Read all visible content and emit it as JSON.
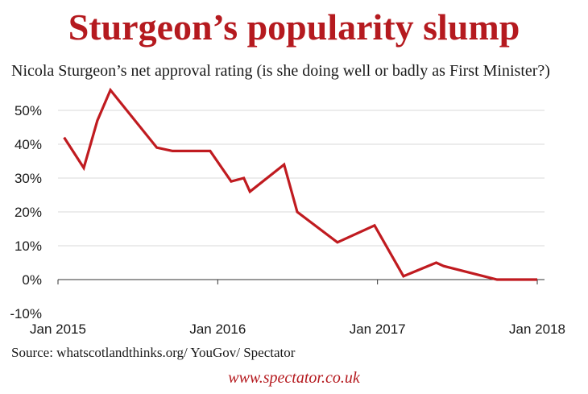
{
  "header": {
    "title": "Sturgeon’s popularity slump",
    "subtitle": "Nicola Sturgeon’s net approval rating (is she doing well or badly as First Minister?)"
  },
  "footer": {
    "source": "Source: whatscotlandthinks.org/ YouGov/ Spectator",
    "site": "www.spectator.co.uk"
  },
  "colors": {
    "title": "#b51a1f",
    "line": "#c01b20",
    "grid": "#d9d9d9",
    "axis": "#333333"
  },
  "chart_data": {
    "type": "line",
    "title": "Sturgeon’s popularity slump",
    "subtitle": "Nicola Sturgeon’s net approval rating (is she doing well or badly as First Minister?)",
    "xlabel": "",
    "ylabel": "",
    "x_ticks": [
      "Jan 2015",
      "Jan 2016",
      "Jan 2017",
      "Jan 2018"
    ],
    "y_ticks": [
      "-10%",
      "0%",
      "10%",
      "20%",
      "30%",
      "40%",
      "50%"
    ],
    "xlim": [
      "2015-01-01",
      "2018-01-01"
    ],
    "ylim": [
      -10,
      50
    ],
    "grid": true,
    "series": [
      {
        "x": [
          "2015-01-15",
          "2015-03-01",
          "2015-04-01",
          "2015-05-01",
          "2015-08-15",
          "2015-09-20",
          "2015-12-15",
          "2016-02-01",
          "2016-03-01",
          "2016-03-15",
          "2016-06-01",
          "2016-07-01",
          "2016-10-01",
          "2016-12-25",
          "2017-03-01",
          "2017-05-15",
          "2017-06-01",
          "2017-10-01",
          "2018-01-01"
        ],
        "y": [
          42,
          33,
          47,
          56,
          39,
          38,
          38,
          29,
          30,
          26,
          34,
          20,
          11,
          16,
          1,
          5,
          4,
          0,
          0
        ]
      }
    ]
  }
}
